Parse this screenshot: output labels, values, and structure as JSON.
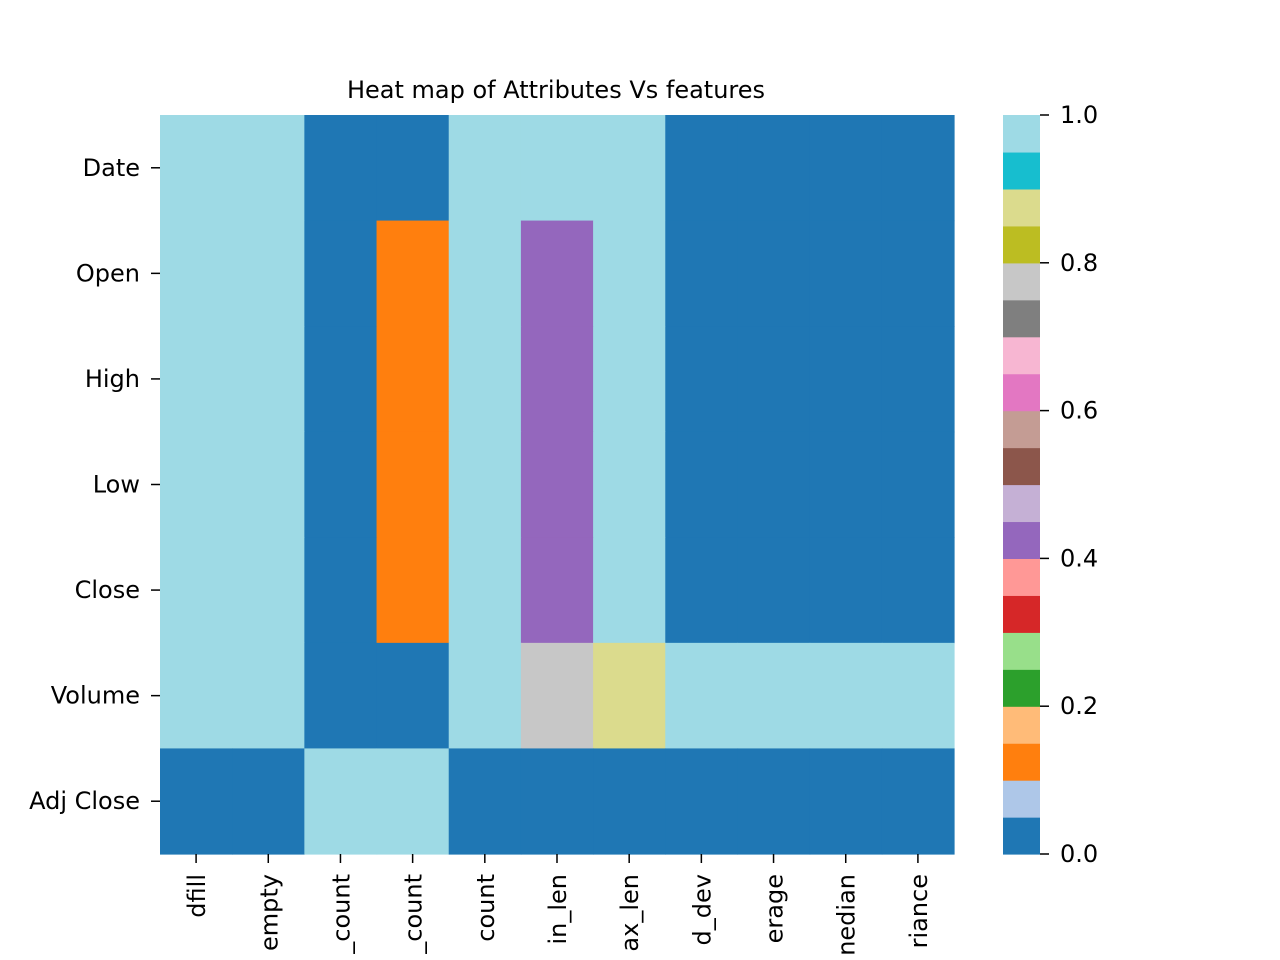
{
  "chart_data": {
    "type": "heatmap",
    "title": "Heat map of Attributes Vs features",
    "xlabel": "",
    "ylabel": "",
    "rows": [
      "Date",
      "Open",
      "High",
      "Low",
      "Close",
      "Volume",
      "Adj Close"
    ],
    "columns": [
      "dfill",
      "empty",
      "_count",
      "_count",
      "count",
      "in_len",
      "ax_len",
      "d_dev",
      "erage",
      "nedian",
      "riance"
    ],
    "values": [
      [
        1,
        1,
        0,
        0,
        1,
        1,
        1,
        0,
        0,
        0,
        0
      ],
      [
        1,
        1,
        0,
        0.1,
        1,
        0.4,
        1,
        0,
        0,
        0,
        0
      ],
      [
        1,
        1,
        0,
        0.1,
        1,
        0.4,
        1,
        0,
        0,
        0,
        0
      ],
      [
        1,
        1,
        0,
        0.1,
        1,
        0.4,
        1,
        0,
        0,
        0,
        0
      ],
      [
        1,
        1,
        0,
        0.1,
        1,
        0.4,
        1,
        0,
        0,
        0,
        0
      ],
      [
        1,
        1,
        0,
        0,
        1,
        0.8,
        0.9,
        1,
        1,
        1,
        1
      ],
      [
        0,
        0,
        1,
        1,
        0,
        0,
        0,
        0,
        0,
        0,
        0
      ]
    ],
    "colormap": "tab20",
    "palette": [
      "#1f77b4",
      "#aec7e8",
      "#ff7f0e",
      "#ffbb78",
      "#2ca02c",
      "#98df8a",
      "#d62728",
      "#ff9896",
      "#9467bd",
      "#c5b0d5",
      "#8c564b",
      "#c49c94",
      "#e377c2",
      "#f7b6d2",
      "#7f7f7f",
      "#c7c7c7",
      "#bcbd22",
      "#dbdb8d",
      "#17becf",
      "#9edae5"
    ],
    "vmin": 0,
    "vmax": 1,
    "colorbar_ticks": [
      "0.0",
      "0.2",
      "0.4",
      "0.6",
      "0.8",
      "1.0"
    ],
    "grid": false
  }
}
